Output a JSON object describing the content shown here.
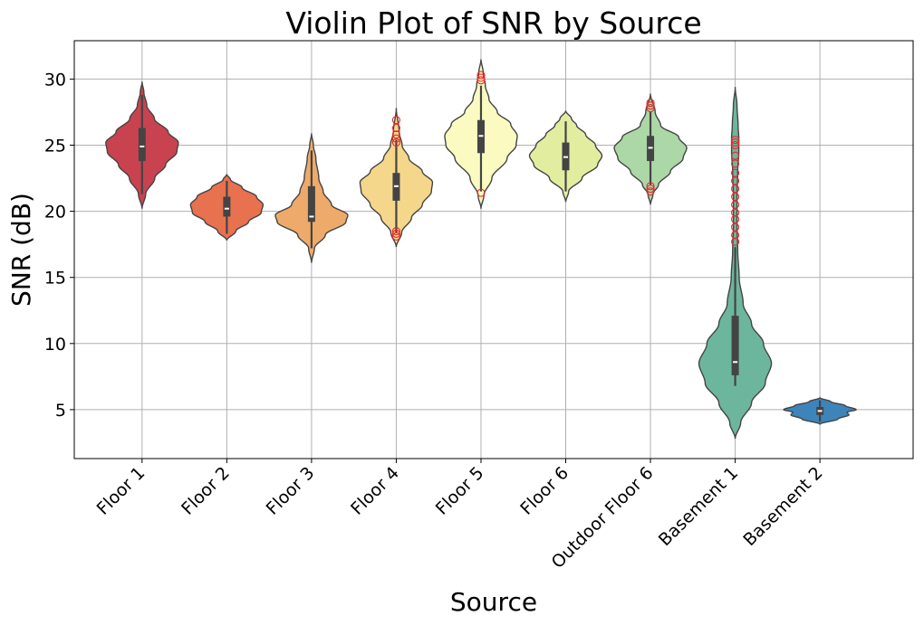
{
  "chart_data": {
    "type": "violin",
    "title": "Violin Plot of SNR by Source",
    "xlabel": "Source",
    "ylabel": "SNR (dB)",
    "ylim": [
      1.3,
      32.9
    ],
    "yticks": [
      5,
      10,
      15,
      20,
      25,
      30
    ],
    "grid": true,
    "categories": [
      "Floor 1",
      "Floor 2",
      "Floor 3",
      "Floor 4",
      "Floor 5",
      "Floor 6",
      "Outdoor Floor 6",
      "Basement 1",
      "Basement 2"
    ],
    "colors": [
      "#c8434f",
      "#e8714f",
      "#eeaa6a",
      "#f5d78c",
      "#fafac1",
      "#e3eda0",
      "#acd7a6",
      "#6db69e",
      "#3d84ba"
    ],
    "outlier_color": "#e8282b",
    "violins": [
      {
        "median": 24.9,
        "q1": 23.8,
        "q3": 26.3,
        "whisker_low": 21.3,
        "whisker_high": 28.8,
        "outliers": [],
        "profile": [
          [
            20.2,
            0
          ],
          [
            21.3,
            0.1
          ],
          [
            22.5,
            0.35
          ],
          [
            23.5,
            0.65
          ],
          [
            24.5,
            0.96
          ],
          [
            25.2,
            1.0
          ],
          [
            26.0,
            0.72
          ],
          [
            27.0,
            0.34
          ],
          [
            28.0,
            0.13
          ],
          [
            29.0,
            0.05
          ],
          [
            29.8,
            0
          ]
        ]
      },
      {
        "median": 20.2,
        "q1": 19.6,
        "q3": 21.1,
        "whisker_low": 18.3,
        "whisker_high": 22.3,
        "outliers": [],
        "profile": [
          [
            17.8,
            0
          ],
          [
            18.5,
            0.25
          ],
          [
            19.2,
            0.6
          ],
          [
            19.9,
            0.95
          ],
          [
            20.5,
            1.0
          ],
          [
            21.1,
            0.82
          ],
          [
            21.8,
            0.42
          ],
          [
            22.4,
            0.1
          ],
          [
            22.8,
            0
          ]
        ]
      },
      {
        "median": 19.6,
        "q1": 19.2,
        "q3": 21.9,
        "whisker_low": 17.2,
        "whisker_high": 24.6,
        "outliers": [],
        "profile": [
          [
            16.1,
            0
          ],
          [
            17.2,
            0.08
          ],
          [
            18.2,
            0.38
          ],
          [
            19.2,
            0.95
          ],
          [
            19.7,
            1.0
          ],
          [
            20.5,
            0.55
          ],
          [
            21.5,
            0.32
          ],
          [
            22.5,
            0.2
          ],
          [
            24.0,
            0.12
          ],
          [
            25.0,
            0.05
          ],
          [
            25.9,
            0
          ]
        ]
      },
      {
        "median": 21.9,
        "q1": 20.8,
        "q3": 22.9,
        "whisker_low": 18.4,
        "whisker_high": 25.4,
        "outliers": [
          18.1,
          18.3,
          18.5,
          25.2,
          25.5,
          25.8,
          26.3,
          26.9
        ],
        "profile": [
          [
            17.3,
            0
          ],
          [
            18.4,
            0.15
          ],
          [
            19.5,
            0.42
          ],
          [
            20.5,
            0.72
          ],
          [
            21.5,
            0.97
          ],
          [
            22.2,
            1.0
          ],
          [
            23.0,
            0.72
          ],
          [
            24.0,
            0.35
          ],
          [
            25.0,
            0.16
          ],
          [
            26.0,
            0.08
          ],
          [
            27.8,
            0
          ]
        ]
      },
      {
        "median": 25.7,
        "q1": 24.4,
        "q3": 26.9,
        "whisker_low": 21.5,
        "whisker_high": 29.5,
        "outliers": [
          21.4,
          29.9,
          30.1,
          30.3
        ],
        "profile": [
          [
            20.2,
            0
          ],
          [
            21.2,
            0.08
          ],
          [
            22.5,
            0.3
          ],
          [
            24.0,
            0.72
          ],
          [
            25.0,
            0.97
          ],
          [
            25.7,
            1.0
          ],
          [
            26.6,
            0.82
          ],
          [
            27.5,
            0.45
          ],
          [
            28.5,
            0.22
          ],
          [
            29.5,
            0.12
          ],
          [
            30.5,
            0.06
          ],
          [
            31.5,
            0
          ]
        ]
      },
      {
        "median": 24.1,
        "q1": 23.1,
        "q3": 25.2,
        "whisker_low": 21.5,
        "whisker_high": 26.8,
        "outliers": [],
        "profile": [
          [
            20.7,
            0
          ],
          [
            21.5,
            0.08
          ],
          [
            22.5,
            0.45
          ],
          [
            23.5,
            0.88
          ],
          [
            24.2,
            1.0
          ],
          [
            25.0,
            0.82
          ],
          [
            25.8,
            0.55
          ],
          [
            26.5,
            0.3
          ],
          [
            27.0,
            0.16
          ],
          [
            27.6,
            0
          ]
        ]
      },
      {
        "median": 24.8,
        "q1": 23.8,
        "q3": 25.7,
        "whisker_low": 22.0,
        "whisker_high": 27.5,
        "outliers": [
          21.5,
          21.7,
          21.9,
          27.8,
          28.0,
          28.2
        ],
        "profile": [
          [
            20.5,
            0
          ],
          [
            21.3,
            0.07
          ],
          [
            22.0,
            0.22
          ],
          [
            23.0,
            0.55
          ],
          [
            24.0,
            0.9
          ],
          [
            24.8,
            1.0
          ],
          [
            25.6,
            0.78
          ],
          [
            26.5,
            0.28
          ],
          [
            27.5,
            0.13
          ],
          [
            28.9,
            0
          ]
        ]
      },
      {
        "median": 8.6,
        "q1": 7.6,
        "q3": 12.1,
        "whisker_low": 6.8,
        "whisker_high": 17.3,
        "outliers": [
          17.7,
          18.2,
          18.8,
          19.4,
          19.9,
          20.5,
          21.1,
          21.7,
          22.3,
          22.9,
          23.6,
          24.2,
          25.0,
          25.2,
          25.4
        ],
        "profile": [
          [
            2.8,
            0
          ],
          [
            4.0,
            0.15
          ],
          [
            5.5,
            0.45
          ],
          [
            7.0,
            0.83
          ],
          [
            8.5,
            1.0
          ],
          [
            10.0,
            0.78
          ],
          [
            11.5,
            0.45
          ],
          [
            13.0,
            0.22
          ],
          [
            15.0,
            0.11
          ],
          [
            17.0,
            0.07
          ],
          [
            19.0,
            0.05
          ],
          [
            21.0,
            0.05
          ],
          [
            23.0,
            0.07
          ],
          [
            24.5,
            0.1
          ],
          [
            25.5,
            0.1
          ],
          [
            26.5,
            0.08
          ],
          [
            28.0,
            0.05
          ],
          [
            29.4,
            0
          ]
        ]
      },
      {
        "median": 4.9,
        "q1": 4.6,
        "q3": 5.2,
        "whisker_low": 4.1,
        "whisker_high": 5.7,
        "outliers": [],
        "profile": [
          [
            3.9,
            0
          ],
          [
            4.3,
            0.5
          ],
          [
            4.6,
            0.8
          ],
          [
            4.8,
            0.75
          ],
          [
            5.0,
            1.0
          ],
          [
            5.3,
            0.7
          ],
          [
            5.6,
            0.3
          ],
          [
            5.9,
            0
          ]
        ]
      }
    ]
  }
}
